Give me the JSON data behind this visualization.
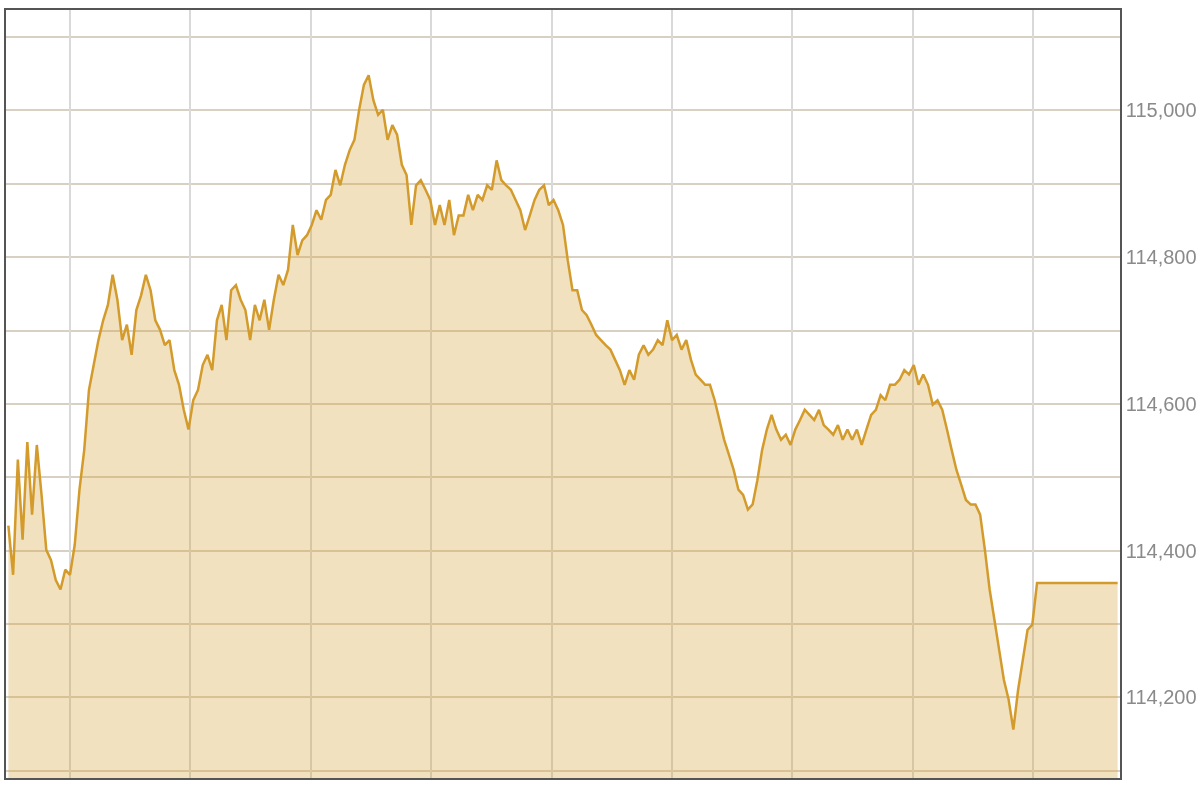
{
  "chart_data": {
    "type": "area",
    "categories": [
      null,
      null,
      null,
      null,
      null,
      null,
      null,
      null,
      null,
      null,
      null,
      null,
      null,
      null,
      null,
      null,
      null,
      null,
      null,
      null,
      null,
      null,
      null,
      null,
      null,
      null,
      null,
      null,
      null,
      null,
      null,
      null,
      null,
      null,
      null,
      null,
      null,
      null,
      null,
      null,
      null,
      null,
      null,
      null,
      null,
      null,
      null,
      null,
      null,
      null,
      null,
      null,
      null,
      null,
      null,
      null,
      null,
      null,
      null,
      null,
      null,
      null,
      null,
      null,
      null,
      null,
      null,
      null,
      null,
      null,
      null,
      null,
      null,
      null,
      null,
      null,
      null,
      null,
      null,
      null,
      null,
      null,
      null,
      null,
      null,
      null,
      null,
      null,
      null,
      null,
      null,
      null,
      null,
      null,
      null,
      null,
      null,
      null,
      null,
      null,
      null,
      null,
      null,
      null,
      null,
      null,
      null,
      null,
      null,
      null,
      null,
      null,
      null,
      null,
      null,
      null,
      null,
      null,
      null,
      null,
      null,
      null,
      null,
      null,
      null,
      null,
      null,
      null,
      null,
      null,
      null,
      null,
      null,
      null,
      null,
      null,
      null,
      null,
      null,
      null,
      null,
      null,
      null,
      null,
      null,
      null,
      null,
      null,
      null,
      null,
      null,
      null,
      null,
      null,
      null,
      null,
      null,
      null,
      null,
      null,
      null,
      null,
      null,
      null,
      null,
      null,
      null,
      null,
      null,
      null,
      null,
      null,
      null,
      null,
      null,
      null,
      null,
      null,
      null,
      null,
      null,
      null,
      null,
      null,
      null,
      null,
      null,
      null,
      null,
      null,
      null,
      null,
      null,
      null,
      null,
      null,
      null,
      null,
      null,
      null,
      null,
      null,
      null,
      null,
      null,
      null,
      null,
      null,
      null,
      null,
      null,
      null,
      null,
      null,
      null,
      null,
      null,
      null,
      null,
      null,
      null,
      null,
      null,
      null,
      null,
      null,
      null,
      null,
      null,
      null,
      null,
      null,
      null,
      null,
      null
    ],
    "series": [
      {
        "color": "#d39b2b",
        "values": [
          114434,
          114367,
          114524,
          114415,
          114548,
          114449,
          114544,
          114476,
          114401,
          114387,
          114360,
          114347,
          114374,
          114367,
          114408,
          114483,
          114537,
          114619,
          114653,
          114687,
          114714,
          114735,
          114776,
          114742,
          114687,
          114708,
          114667,
          114728,
          114748,
          114776,
          114755,
          114714,
          114701,
          114680,
          114687,
          114646,
          114626,
          114592,
          114565,
          114605,
          114619,
          114653,
          114667,
          114646,
          114714,
          114735,
          114687,
          114755,
          114762,
          114742,
          114728,
          114687,
          114735,
          114714,
          114742,
          114701,
          114742,
          114776,
          114762,
          114783,
          114844,
          114803,
          114823,
          114830,
          114844,
          114864,
          114851,
          114878,
          114885,
          114919,
          114898,
          114926,
          114946,
          114960,
          115001,
          115035,
          115048,
          115014,
          114994,
          115001,
          114960,
          114980,
          114967,
          114926,
          114912,
          114844,
          114898,
          114905,
          114892,
          114878,
          114844,
          114871,
          114844,
          114878,
          114830,
          114857,
          114857,
          114885,
          114864,
          114885,
          114878,
          114898,
          114892,
          114932,
          114905,
          114898,
          114892,
          114878,
          114864,
          114837,
          114857,
          114878,
          114892,
          114898,
          114871,
          114878,
          114864,
          114844,
          114796,
          114755,
          114755,
          114728,
          114721,
          114708,
          114694,
          114687,
          114680,
          114674,
          114660,
          114646,
          114626,
          114646,
          114633,
          114667,
          114680,
          114667,
          114674,
          114687,
          114680,
          114714,
          114687,
          114694,
          114674,
          114687,
          114660,
          114640,
          114633,
          114626,
          114626,
          114605,
          114578,
          114551,
          114531,
          114510,
          114483,
          114476,
          114456,
          114463,
          114496,
          114537,
          114565,
          114585,
          114565,
          114551,
          114558,
          114544,
          114565,
          114578,
          114592,
          114585,
          114578,
          114592,
          114571,
          114565,
          114558,
          114571,
          114551,
          114565,
          114551,
          114565,
          114544,
          114565,
          114585,
          114592,
          114612,
          114605,
          114626,
          114626,
          114633,
          114646,
          114640,
          114653,
          114626,
          114640,
          114626,
          114599,
          114605,
          114592,
          114565,
          114537,
          114510,
          114490,
          114469,
          114463,
          114463,
          114449,
          114401,
          114347,
          114306,
          114265,
          114224,
          114197,
          114156,
          114210,
          114251,
          114292,
          114299,
          114356,
          114356,
          114356,
          114356,
          114356,
          114356,
          114356,
          114356,
          114356,
          114356,
          114356,
          114356,
          114356,
          114356,
          114356,
          114356,
          114356,
          114356
        ]
      }
    ],
    "ylim": [
      114090,
      115137
    ],
    "yticks": [
      {
        "value": 114100,
        "label": null
      },
      {
        "value": 114200,
        "label": "114,200"
      },
      {
        "value": 114300,
        "label": null
      },
      {
        "value": 114400,
        "label": "114,400"
      },
      {
        "value": 114500,
        "label": null
      },
      {
        "value": 114600,
        "label": "114,600"
      },
      {
        "value": 114700,
        "label": null
      },
      {
        "value": 114800,
        "label": "114,800"
      },
      {
        "value": 114900,
        "label": null
      },
      {
        "value": 115000,
        "label": "115,000"
      },
      {
        "value": 115100,
        "label": null
      }
    ],
    "grid": true,
    "tick_labels": "y"
  }
}
